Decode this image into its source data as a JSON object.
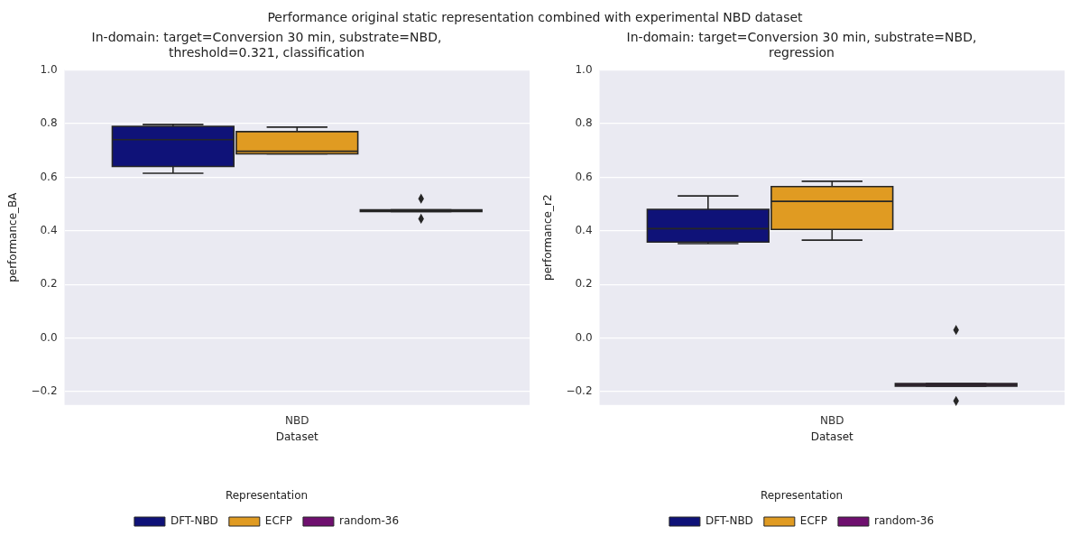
{
  "chart_data": [
    {
      "type": "box",
      "title": "In-domain: target=Conversion 30 min, substrate=NBD,\nthreshold=0.321, classification",
      "annotations": [
        "Performance original static representation combined with experimental NBD dataset"
      ],
      "xlabel": "Dataset",
      "ylabel": "performance_BA",
      "categories": [
        "NBD"
      ],
      "ylim": [
        -0.25,
        1.0
      ],
      "yticks": [
        {
          "value": -0.2,
          "label": "−0.2"
        },
        {
          "value": 0,
          "label": "0.0"
        },
        0.2,
        0.4,
        0.6,
        0.8,
        {
          "value": 1,
          "label": "1.0"
        }
      ],
      "grid": "y",
      "legend": "bottom",
      "legend_title": "Representation",
      "marker": "diamond",
      "series": [
        {
          "name": "DFT-NBD",
          "color": "#0f1278",
          "boxes": [
            {
              "low": 0.615,
              "q1": 0.64,
              "median": 0.74,
              "q3": 0.79,
              "high": 0.797
            }
          ]
        },
        {
          "name": "ECFP",
          "color": "#e09b22",
          "boxes": [
            {
              "low": 0.687,
              "q1": 0.687,
              "median": 0.697,
              "q3": 0.77,
              "high": 0.787
            }
          ]
        },
        {
          "name": "random-36",
          "color": "#6f106f",
          "boxes": [
            {
              "low": 0.472,
              "q1": 0.472,
              "median": 0.475,
              "q3": 0.478,
              "high": 0.478,
              "outliers": [
                0.52,
                0.445
              ]
            }
          ]
        }
      ]
    },
    {
      "type": "box",
      "title": "In-domain: target=Conversion 30 min, substrate=NBD,\nregression",
      "xlabel": "Dataset",
      "ylabel": "performance_r2",
      "categories": [
        "NBD"
      ],
      "ylim": [
        -0.25,
        1.0
      ],
      "yticks": [
        {
          "value": -0.2,
          "label": "−0.2"
        },
        {
          "value": 0,
          "label": "0.0"
        },
        0.2,
        0.4,
        0.6,
        0.8,
        {
          "value": 1,
          "label": "1.0"
        }
      ],
      "grid": "y",
      "legend": "bottom",
      "legend_title": "Representation",
      "marker": "diamond",
      "series": [
        {
          "name": "DFT-NBD",
          "color": "#0f1278",
          "boxes": [
            {
              "low": 0.352,
              "q1": 0.358,
              "median": 0.408,
              "q3": 0.48,
              "high": 0.53
            }
          ]
        },
        {
          "name": "ECFP",
          "color": "#e09b22",
          "boxes": [
            {
              "low": 0.365,
              "q1": 0.405,
              "median": 0.51,
              "q3": 0.565,
              "high": 0.585
            }
          ]
        },
        {
          "name": "random-36",
          "color": "#6f106f",
          "boxes": [
            {
              "low": -0.18,
              "q1": -0.18,
              "median": -0.175,
              "q3": -0.17,
              "high": -0.17,
              "outliers": [
                0.03,
                -0.235
              ]
            }
          ]
        }
      ]
    }
  ]
}
